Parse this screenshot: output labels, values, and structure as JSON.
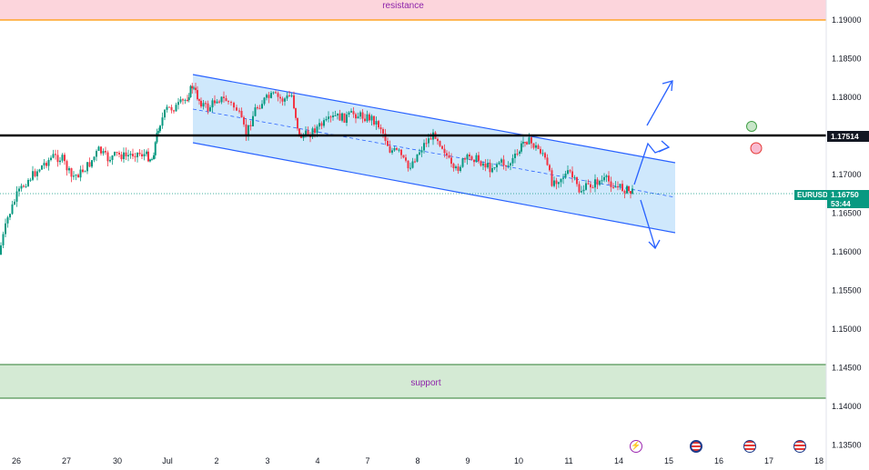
{
  "chart_data": {
    "type": "candlestick",
    "symbol": "EURUSD",
    "y_ticks": [
      "1.19000",
      "1.18500",
      "1.18000",
      "1.17500",
      "1.17000",
      "1.16500",
      "1.16000",
      "1.15500",
      "1.15000",
      "1.14500",
      "1.14000",
      "1.13500"
    ],
    "x_ticks": [
      "26",
      "27",
      "30",
      "Jul",
      "2",
      "3",
      "4",
      "7",
      "8",
      "9",
      "10",
      "11",
      "14",
      "15",
      "16",
      "17",
      "18"
    ],
    "key_level": "1.17514",
    "last_price": "1.16750",
    "countdown": "53:44",
    "zones": {
      "resistance": "resistance",
      "support": "support"
    },
    "colors": {
      "up": "#089981",
      "down": "#f23645",
      "channel": "#2962ff",
      "channel_fill": "#bbdefb",
      "resistance_fill": "#fcd5dc",
      "resistance_line": "#ff9800",
      "support_fill": "#d4ead4",
      "support_line": "#2e7d32",
      "key_level": "#000000"
    }
  },
  "events": [
    "lightning-icon",
    "us-flag-icon",
    "us-flag-icon",
    "us-flag-icon"
  ]
}
